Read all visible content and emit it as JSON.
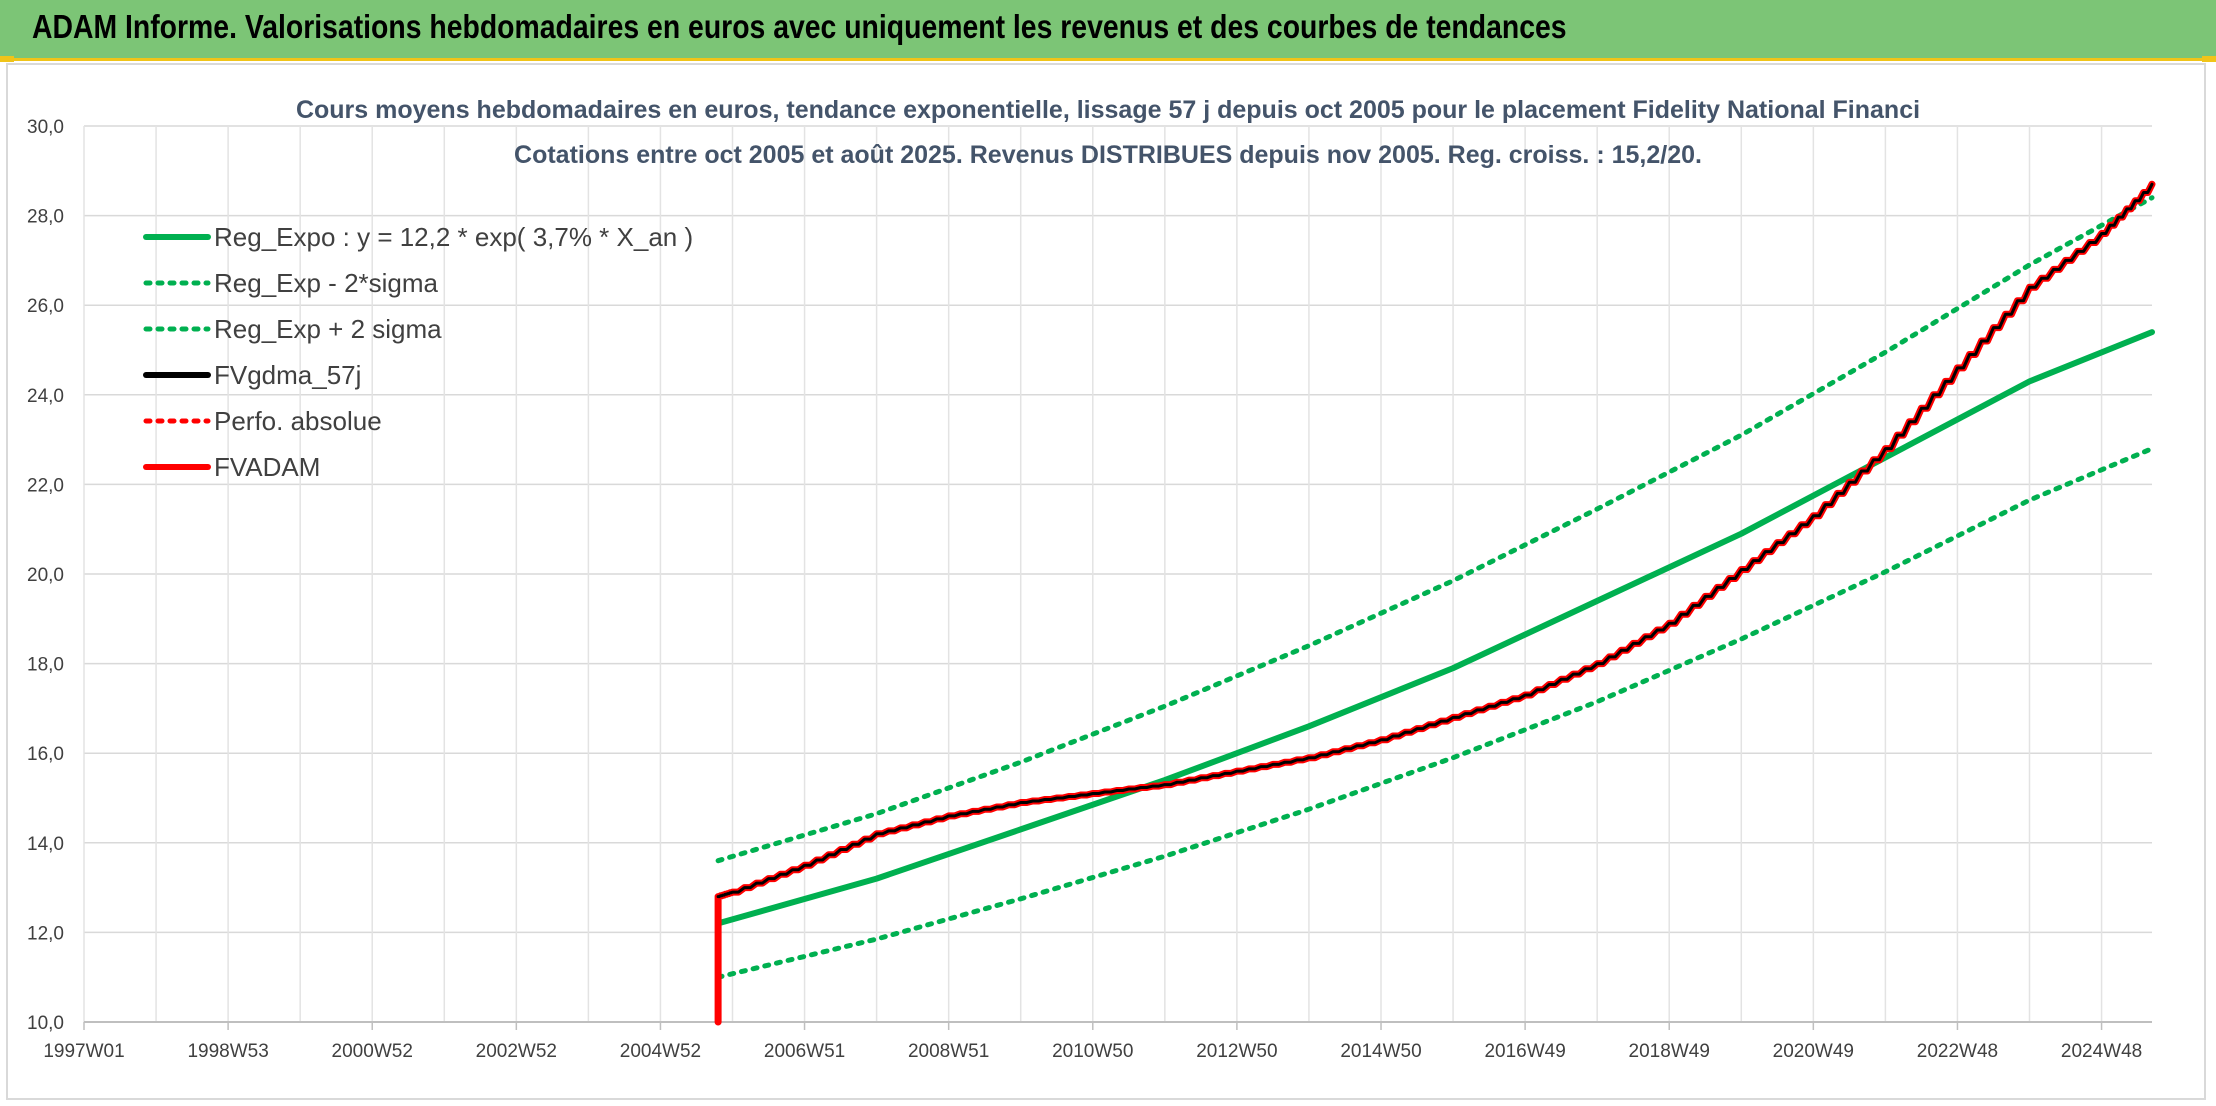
{
  "header": {
    "title": "ADAM Informe. Valorisations hebdomadaires en euros avec uniquement les revenus et des courbes de tendances"
  },
  "colors": {
    "header_bg": "#7cc576",
    "accent_yellow": "#f0c419",
    "green": "#00b050",
    "red": "#ff0000",
    "black": "#000000"
  },
  "chart_data": {
    "type": "line",
    "title": "Cours moyens hebdomadaires en euros, tendance exponentielle, lissage 57 j depuis oct 2005 pour le placement Fidelity National Financi",
    "subtitle": "Cotations entre oct 2005 et août 2025. Revenus DISTRIBUES depuis nov 2005. Reg. croiss. : 15,2/20.",
    "xlabel": "",
    "ylabel": "",
    "x_range": [
      1997.0,
      2025.7
    ],
    "ylim": [
      10,
      30
    ],
    "y_ticks": [
      "10,0",
      "12,0",
      "14,0",
      "16,0",
      "18,0",
      "20,0",
      "22,0",
      "24,0",
      "26,0",
      "28,0",
      "30,0"
    ],
    "x_ticks": [
      {
        "label": "1997W01",
        "x": 1997.0
      },
      {
        "label": "1998W53",
        "x": 1999.0
      },
      {
        "label": "2000W52",
        "x": 2001.0
      },
      {
        "label": "2002W52",
        "x": 2003.0
      },
      {
        "label": "2004W52",
        "x": 2005.0
      },
      {
        "label": "2006W51",
        "x": 2007.0
      },
      {
        "label": "2008W51",
        "x": 2009.0
      },
      {
        "label": "2010W50",
        "x": 2011.0
      },
      {
        "label": "2012W50",
        "x": 2013.0
      },
      {
        "label": "2014W50",
        "x": 2015.0
      },
      {
        "label": "2016W49",
        "x": 2017.0
      },
      {
        "label": "2018W49",
        "x": 2019.0
      },
      {
        "label": "2020W49",
        "x": 2021.0
      },
      {
        "label": "2022W48",
        "x": 2023.0
      },
      {
        "label": "2024W48",
        "x": 2025.0
      }
    ],
    "grid": true,
    "legend_position": "top-left",
    "series": [
      {
        "name": "Reg_Expo : y = 12,2 * exp( 3,7% *  X_an )",
        "style": "solid",
        "color": "#00b050",
        "x": [
          2005.8,
          2008,
          2010,
          2012,
          2014,
          2016,
          2018,
          2020,
          2022,
          2024,
          2025.7
        ],
        "y": [
          12.2,
          13.2,
          14.3,
          15.4,
          16.6,
          17.9,
          19.4,
          20.9,
          22.6,
          24.3,
          25.4
        ]
      },
      {
        "name": "Reg_Exp - 2*sigma",
        "style": "dotted",
        "color": "#00b050",
        "x": [
          2005.8,
          2008,
          2010,
          2012,
          2014,
          2016,
          2018,
          2020,
          2022,
          2024,
          2025.7
        ],
        "y": [
          11.0,
          11.85,
          12.75,
          13.7,
          14.75,
          15.9,
          17.15,
          18.55,
          20.05,
          21.65,
          22.8
        ]
      },
      {
        "name": "Reg_Exp + 2 sigma",
        "style": "dotted",
        "color": "#00b050",
        "x": [
          2005.8,
          2008,
          2010,
          2012,
          2014,
          2016,
          2018,
          2020,
          2022,
          2024,
          2025.7
        ],
        "y": [
          13.6,
          14.65,
          15.8,
          17.05,
          18.4,
          19.85,
          21.45,
          23.1,
          24.95,
          26.9,
          28.4
        ]
      },
      {
        "name": "FVgdma_57j",
        "style": "solid",
        "color": "#000000",
        "x": [
          2005.8,
          2006,
          2007,
          2008,
          2009,
          2010,
          2011,
          2012,
          2013,
          2014,
          2015,
          2016,
          2017,
          2018,
          2019,
          2020,
          2021,
          2022,
          2023,
          2024,
          2025,
          2025.7
        ],
        "y": [
          12.8,
          12.9,
          13.5,
          14.2,
          14.6,
          14.9,
          15.1,
          15.3,
          15.6,
          15.9,
          16.3,
          16.8,
          17.3,
          18.0,
          18.9,
          20.1,
          21.3,
          22.8,
          24.6,
          26.4,
          27.6,
          28.7
        ]
      },
      {
        "name": "Perfo. absolue",
        "style": "dotted",
        "color": "#ff0000",
        "x": [],
        "y": []
      },
      {
        "name": "FVADAM",
        "style": "solid",
        "color": "#ff0000",
        "x": [
          2005.8,
          2005.8,
          2006,
          2007,
          2008,
          2009,
          2010,
          2011,
          2012,
          2013,
          2014,
          2015,
          2016,
          2017,
          2018,
          2019,
          2020,
          2021,
          2022,
          2023,
          2024,
          2025,
          2025.7
        ],
        "y": [
          10.0,
          12.8,
          12.9,
          13.5,
          14.2,
          14.6,
          14.9,
          15.1,
          15.3,
          15.6,
          15.9,
          16.3,
          16.8,
          17.3,
          18.0,
          18.9,
          20.1,
          21.3,
          22.8,
          24.6,
          26.4,
          27.6,
          28.7
        ]
      }
    ]
  }
}
